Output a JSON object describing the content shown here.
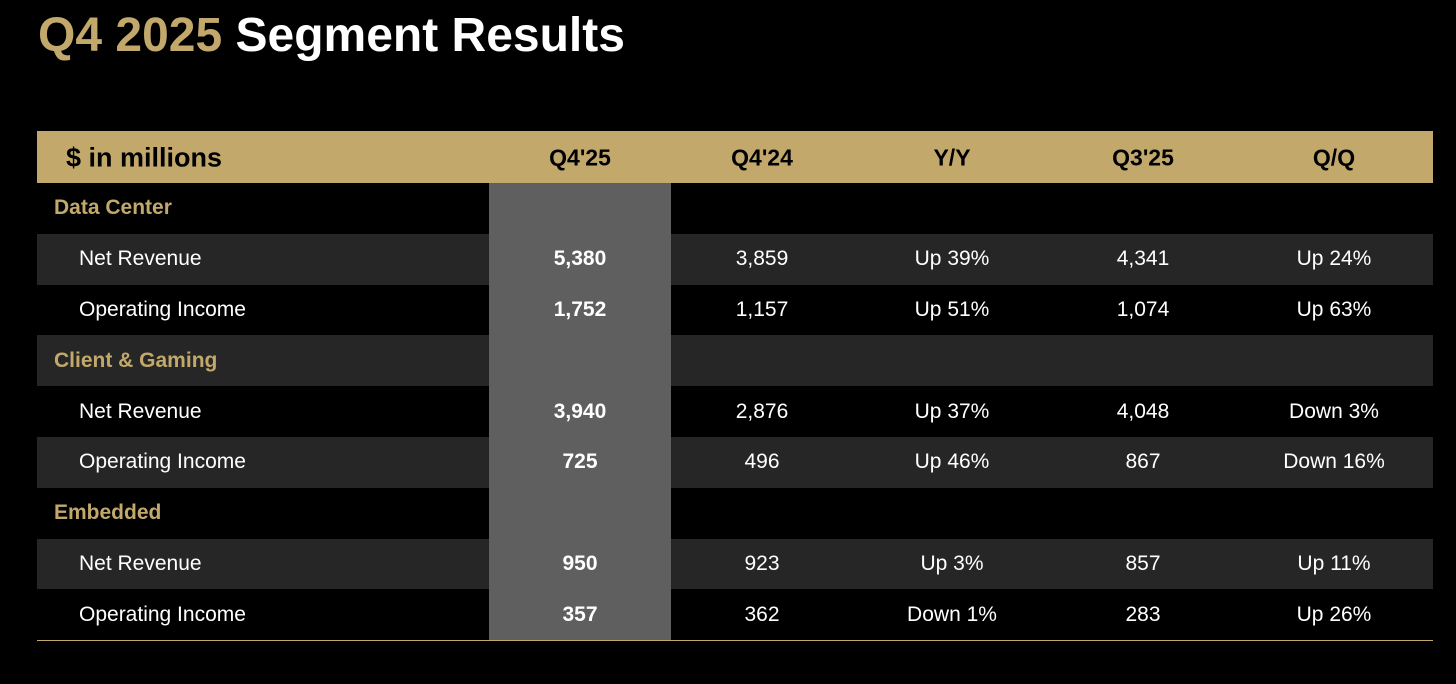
{
  "title": {
    "period": "Q4 2025",
    "text": "Segment Results"
  },
  "table": {
    "header": [
      "$ in millions",
      "Q4'25",
      "Q4'24",
      "Y/Y",
      "Q3'25",
      "Q/Q"
    ],
    "sections": [
      {
        "name": "Data Center",
        "rows": [
          {
            "label": "Net Revenue",
            "values": [
              "5,380",
              "3,859",
              "Up 39%",
              "4,341",
              "Up 24%"
            ]
          },
          {
            "label": "Operating Income",
            "values": [
              "1,752",
              "1,157",
              "Up 51%",
              "1,074",
              "Up 63%"
            ]
          }
        ]
      },
      {
        "name": "Client & Gaming",
        "rows": [
          {
            "label": "Net Revenue",
            "values": [
              "3,940",
              "2,876",
              "Up 37%",
              "4,048",
              "Down 3%"
            ]
          },
          {
            "label": "Operating Income",
            "values": [
              "725",
              "496",
              "Up 46%",
              "867",
              "Down 16%"
            ]
          }
        ]
      },
      {
        "name": "Embedded",
        "rows": [
          {
            "label": "Net Revenue",
            "values": [
              "950",
              "923",
              "Up 3%",
              "857",
              "Up 11%"
            ]
          },
          {
            "label": "Operating Income",
            "values": [
              "357",
              "362",
              "Down 1%",
              "283",
              "Up 26%"
            ]
          }
        ]
      }
    ]
  }
}
